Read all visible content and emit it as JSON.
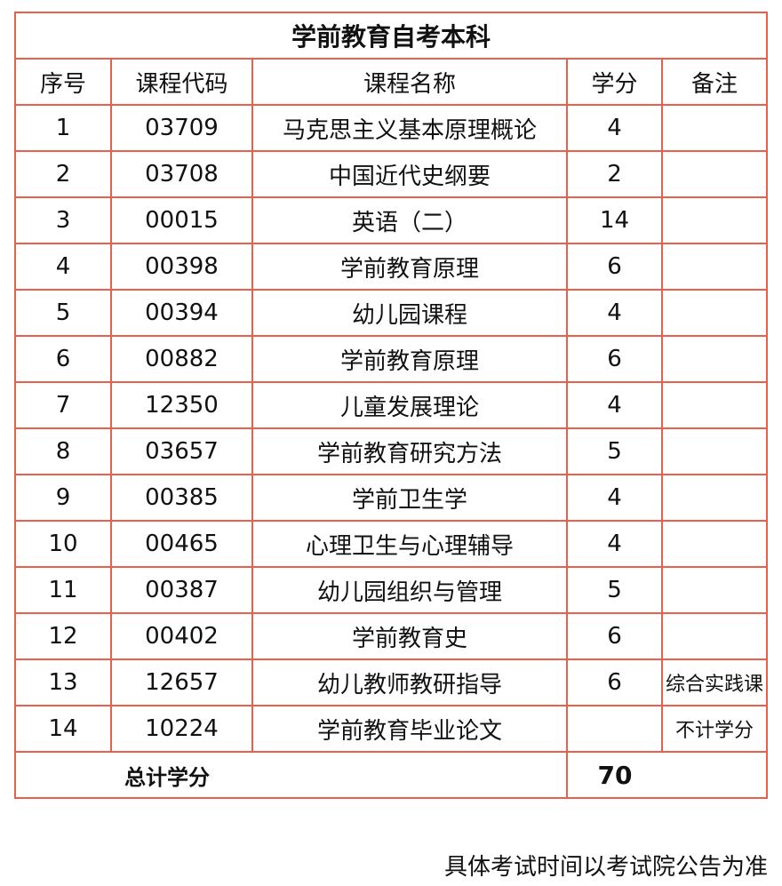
{
  "title": "学前教育自考本科",
  "headers": [
    "序号",
    "课程代码",
    "课程名称",
    "学分",
    "备注"
  ],
  "rows": [
    [
      "1",
      "03709",
      "马克思主义基本原理概论",
      "4",
      ""
    ],
    [
      "2",
      "03708",
      "中国近代史纲要",
      "2",
      ""
    ],
    [
      "3",
      "00015",
      "英语（二）",
      "14",
      ""
    ],
    [
      "4",
      "00398",
      "学前教育原理",
      "6",
      ""
    ],
    [
      "5",
      "00394",
      "幼儿园课程",
      "4",
      ""
    ],
    [
      "6",
      "00882",
      "学前教育原理",
      "6",
      ""
    ],
    [
      "7",
      "12350",
      "儿童发展理论",
      "4",
      ""
    ],
    [
      "8",
      "03657",
      "学前教育研究方法",
      "5",
      ""
    ],
    [
      "9",
      "00385",
      "学前卫生学",
      "4",
      ""
    ],
    [
      "10",
      "00465",
      "心理卫生与心理辅导",
      "4",
      ""
    ],
    [
      "11",
      "00387",
      "幼儿园组织与管理",
      "5",
      ""
    ],
    [
      "12",
      "00402",
      "学前教育史",
      "6",
      ""
    ],
    [
      "13",
      "12657",
      "幼儿教师教研指导",
      "6",
      "综合实践课"
    ],
    [
      "14",
      "10224",
      "学前教育毕业论文",
      "",
      "不计学分"
    ]
  ],
  "total": {
    "label": "总计学分",
    "value": "70"
  },
  "footer": "具体考试时间以考试院公告为准",
  "colors": {
    "border": "#e8604c"
  }
}
